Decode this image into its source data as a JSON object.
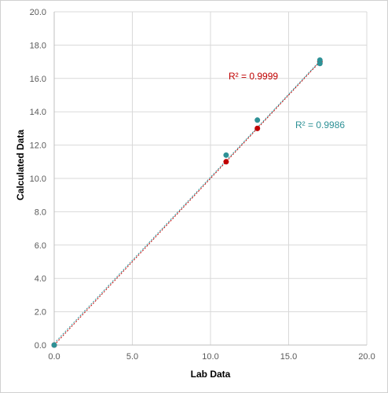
{
  "chart_data": {
    "type": "scatter",
    "xlabel": "Lab Data",
    "ylabel": "Calculated Data",
    "xlim": [
      0,
      20
    ],
    "ylim": [
      0,
      20
    ],
    "x_ticks": [
      "0.0",
      "5.0",
      "10.0",
      "15.0",
      "20.0"
    ],
    "y_ticks": [
      "0.0",
      "2.0",
      "4.0",
      "6.0",
      "8.0",
      "10.0",
      "12.0",
      "14.0",
      "16.0",
      "18.0",
      "20.0"
    ],
    "grid": true,
    "legend": "none",
    "series": [
      {
        "color": "#c00000",
        "points": [
          [
            0,
            0
          ],
          [
            11,
            11
          ],
          [
            13,
            13
          ],
          [
            17,
            17
          ]
        ],
        "trendline": {
          "style": "dotted",
          "from": [
            0,
            0
          ],
          "to": [
            17,
            17
          ]
        },
        "r2_label": "R² = 0.9999"
      },
      {
        "color": "#2e9196",
        "points": [
          [
            0,
            0
          ],
          [
            11,
            11.4
          ],
          [
            13,
            13.5
          ],
          [
            17,
            17.1
          ],
          [
            17,
            16.9
          ]
        ],
        "trendline": {
          "style": "dotted",
          "from": [
            0,
            0.1
          ],
          "to": [
            17,
            17.05
          ]
        },
        "r2_label": "R² = 0.9986"
      }
    ]
  }
}
